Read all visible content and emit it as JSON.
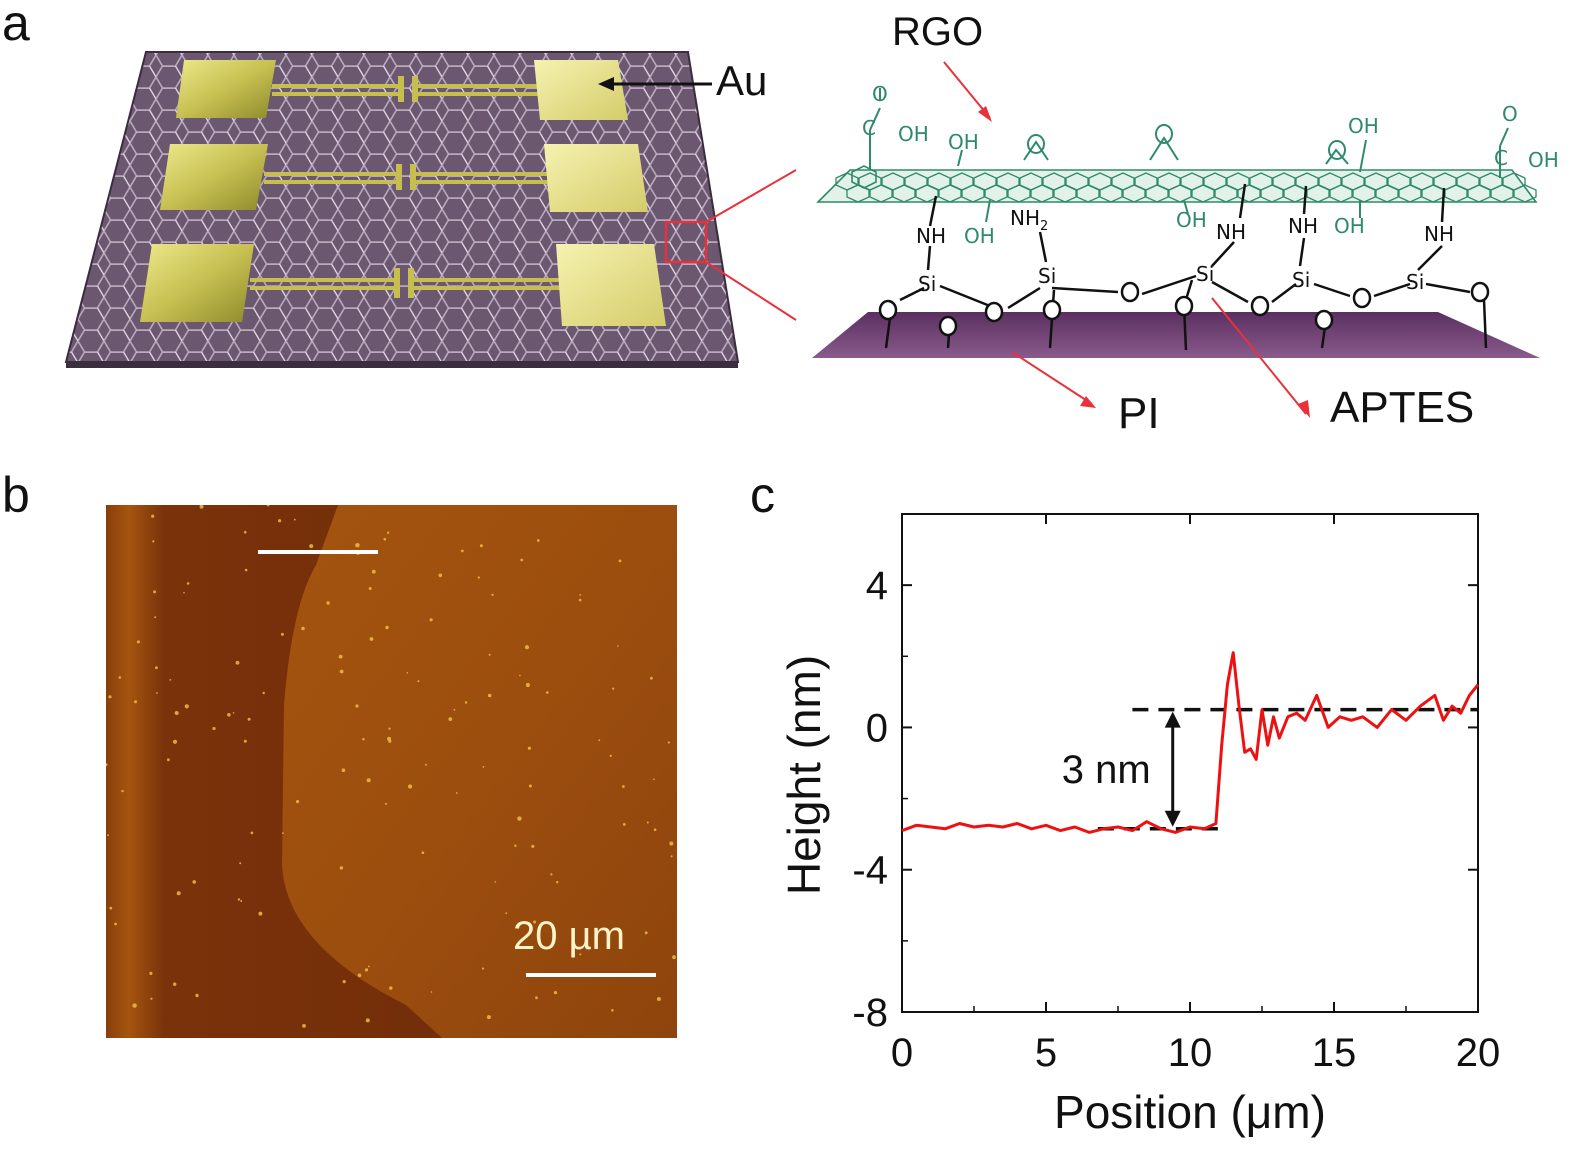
{
  "panels": {
    "a": {
      "letter": "a",
      "labels": {
        "au": "Au",
        "rgo": "RGO",
        "pi": "PI",
        "aptes": "APTES"
      },
      "chem": {
        "oh": "OH",
        "o": "O",
        "c": "C",
        "nh": "NH",
        "nh2": "NH",
        "sub2": "2",
        "si": "Si"
      }
    },
    "b": {
      "letter": "b",
      "scale_bar_label": "20 µm"
    },
    "c": {
      "letter": "c",
      "step_label": "3 nm"
    }
  },
  "colors": {
    "substrate": "#6b5770",
    "gold": "#c9c25a",
    "rgo_green": "#2f8a6a",
    "pi_purple": "#6a3f6e",
    "arrow_red": "#e8313a",
    "afm_dark": "#6e2a08",
    "afm_light": "#a8560f",
    "profile_red": "#ee1111"
  },
  "chart_data": {
    "type": "line",
    "title": "",
    "xlabel": "Position (μm)",
    "ylabel": "Height (nm)",
    "xlim": [
      0,
      20
    ],
    "ylim": [
      -8,
      6
    ],
    "xticks": [
      0,
      5,
      10,
      15,
      20
    ],
    "xtick_labels": [
      "0",
      "5",
      "10",
      "15",
      "20"
    ],
    "yticks": [
      -8,
      -4,
      0,
      4
    ],
    "ytick_labels": [
      "-8",
      "-4",
      "0",
      "4"
    ],
    "grid": false,
    "reference_lines": [
      {
        "y": -2.85,
        "x": [
          6.8,
          11.0
        ]
      },
      {
        "y": 0.5,
        "x": [
          8.0,
          20.0
        ]
      }
    ],
    "annotation": {
      "text": "3 nm",
      "x": 9.4,
      "y_from": -2.85,
      "y_to": 0.5
    },
    "series": [
      {
        "x": [
          0,
          0.5,
          1,
          1.5,
          2,
          2.5,
          3,
          3.5,
          4,
          4.5,
          5,
          5.5,
          6,
          6.5,
          7,
          7.5,
          8,
          8.5,
          9,
          9.5,
          10,
          10.5,
          10.9,
          11.1,
          11.3,
          11.5,
          11.7,
          11.9,
          12.1,
          12.3,
          12.5,
          12.7,
          12.9,
          13.1,
          13.4,
          13.7,
          14.0,
          14.4,
          14.8,
          15.2,
          15.6,
          16.0,
          16.5,
          17.0,
          17.5,
          18.0,
          18.5,
          18.8,
          19.1,
          19.4,
          19.7,
          20
        ],
        "y": [
          -2.9,
          -2.75,
          -2.8,
          -2.85,
          -2.7,
          -2.8,
          -2.75,
          -2.8,
          -2.7,
          -2.85,
          -2.75,
          -2.9,
          -2.8,
          -2.95,
          -2.85,
          -2.8,
          -2.9,
          -2.65,
          -2.85,
          -2.95,
          -2.8,
          -2.85,
          -2.7,
          -0.5,
          1.2,
          2.1,
          0.6,
          -0.7,
          -0.6,
          -0.9,
          0.5,
          -0.5,
          0.3,
          -0.3,
          0.3,
          0.4,
          0.2,
          0.9,
          0.0,
          0.3,
          0.2,
          0.3,
          0.0,
          0.5,
          0.2,
          0.6,
          0.9,
          0.2,
          0.6,
          0.4,
          0.9,
          1.2
        ]
      }
    ]
  }
}
